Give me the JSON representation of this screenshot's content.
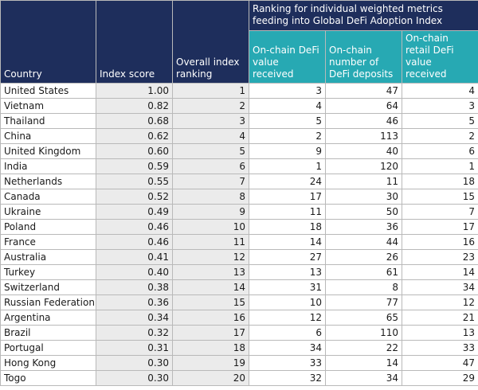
{
  "headers": {
    "country": "Country",
    "index_score": "Index score",
    "overall_ranking": "Overall index ranking",
    "group": "Ranking for individual weighted metrics feeding into Global DeFi Adoption Index",
    "defi_value": "On-chain DeFi value received",
    "defi_deposits": "On-chain number of DeFi deposits",
    "retail_defi": "On-chain retail DeFi value received"
  },
  "colors": {
    "navy": "#1e2e5c",
    "teal": "#27a9b3",
    "shade": "#ebebeb"
  },
  "rows": [
    {
      "country": "United States",
      "score": "1.00",
      "rank": "1",
      "value": "3",
      "deposits": "47",
      "retail": "4"
    },
    {
      "country": "Vietnam",
      "score": "0.82",
      "rank": "2",
      "value": "4",
      "deposits": "64",
      "retail": "3"
    },
    {
      "country": "Thailand",
      "score": "0.68",
      "rank": "3",
      "value": "5",
      "deposits": "46",
      "retail": "5"
    },
    {
      "country": "China",
      "score": "0.62",
      "rank": "4",
      "value": "2",
      "deposits": "113",
      "retail": "2"
    },
    {
      "country": "United Kingdom",
      "score": "0.60",
      "rank": "5",
      "value": "9",
      "deposits": "40",
      "retail": "6"
    },
    {
      "country": "India",
      "score": "0.59",
      "rank": "6",
      "value": "1",
      "deposits": "120",
      "retail": "1"
    },
    {
      "country": "Netherlands",
      "score": "0.55",
      "rank": "7",
      "value": "24",
      "deposits": "11",
      "retail": "18"
    },
    {
      "country": "Canada",
      "score": "0.52",
      "rank": "8",
      "value": "17",
      "deposits": "30",
      "retail": "15"
    },
    {
      "country": "Ukraine",
      "score": "0.49",
      "rank": "9",
      "value": "11",
      "deposits": "50",
      "retail": "7"
    },
    {
      "country": "Poland",
      "score": "0.46",
      "rank": "10",
      "value": "18",
      "deposits": "36",
      "retail": "17"
    },
    {
      "country": "France",
      "score": "0.46",
      "rank": "11",
      "value": "14",
      "deposits": "44",
      "retail": "16"
    },
    {
      "country": "Australia",
      "score": "0.41",
      "rank": "12",
      "value": "27",
      "deposits": "26",
      "retail": "23"
    },
    {
      "country": "Turkey",
      "score": "0.40",
      "rank": "13",
      "value": "13",
      "deposits": "61",
      "retail": "14"
    },
    {
      "country": "Switzerland",
      "score": "0.38",
      "rank": "14",
      "value": "31",
      "deposits": "8",
      "retail": "34"
    },
    {
      "country": "Russian Federation",
      "score": "0.36",
      "rank": "15",
      "value": "10",
      "deposits": "77",
      "retail": "12"
    },
    {
      "country": "Argentina",
      "score": "0.34",
      "rank": "16",
      "value": "12",
      "deposits": "65",
      "retail": "21"
    },
    {
      "country": "Brazil",
      "score": "0.32",
      "rank": "17",
      "value": "6",
      "deposits": "110",
      "retail": "13"
    },
    {
      "country": "Portugal",
      "score": "0.31",
      "rank": "18",
      "value": "34",
      "deposits": "22",
      "retail": "33"
    },
    {
      "country": "Hong Kong",
      "score": "0.30",
      "rank": "19",
      "value": "33",
      "deposits": "14",
      "retail": "47"
    },
    {
      "country": "Togo",
      "score": "0.30",
      "rank": "20",
      "value": "32",
      "deposits": "34",
      "retail": "29"
    }
  ]
}
